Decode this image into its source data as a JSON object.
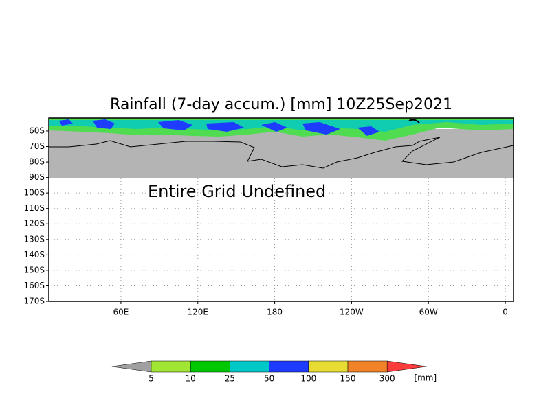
{
  "map": {
    "title": "Rainfall (7-day accum.) [mm] 10Z25Sep2021",
    "note": "Entire Grid Undefined",
    "lat_range": [
      -51.6,
      -170
    ],
    "lon_range": [
      3.7,
      366.4
    ],
    "lat_ticks": [
      {
        "value": -60,
        "label": "60S"
      },
      {
        "value": -70,
        "label": "70S"
      },
      {
        "value": -80,
        "label": "80S"
      },
      {
        "value": -90,
        "label": "90S"
      },
      {
        "value": -100,
        "label": "100S"
      },
      {
        "value": -110,
        "label": "110S"
      },
      {
        "value": -120,
        "label": "120S"
      },
      {
        "value": -130,
        "label": "130S"
      },
      {
        "value": -140,
        "label": "140S"
      },
      {
        "value": -150,
        "label": "150S"
      },
      {
        "value": -160,
        "label": "160S"
      },
      {
        "value": -170,
        "label": "170S"
      }
    ],
    "lon_ticks": [
      {
        "value": 60,
        "label": "60E"
      },
      {
        "value": 120,
        "label": "120E"
      },
      {
        "value": 180,
        "label": "180"
      },
      {
        "value": 240,
        "label": "120W"
      },
      {
        "value": 300,
        "label": "60W"
      },
      {
        "value": 360,
        "label": "0"
      }
    ],
    "grid": true,
    "colorbar": {
      "levels": [
        5,
        10,
        25,
        50,
        100,
        150,
        300
      ],
      "colors": [
        "#a0a0a0",
        "#a0e632",
        "#00c800",
        "#00c8c8",
        "#1e3cff",
        "#e6dc32",
        "#f08228",
        "#fa3c3c"
      ],
      "unit": "[mm]"
    }
  }
}
